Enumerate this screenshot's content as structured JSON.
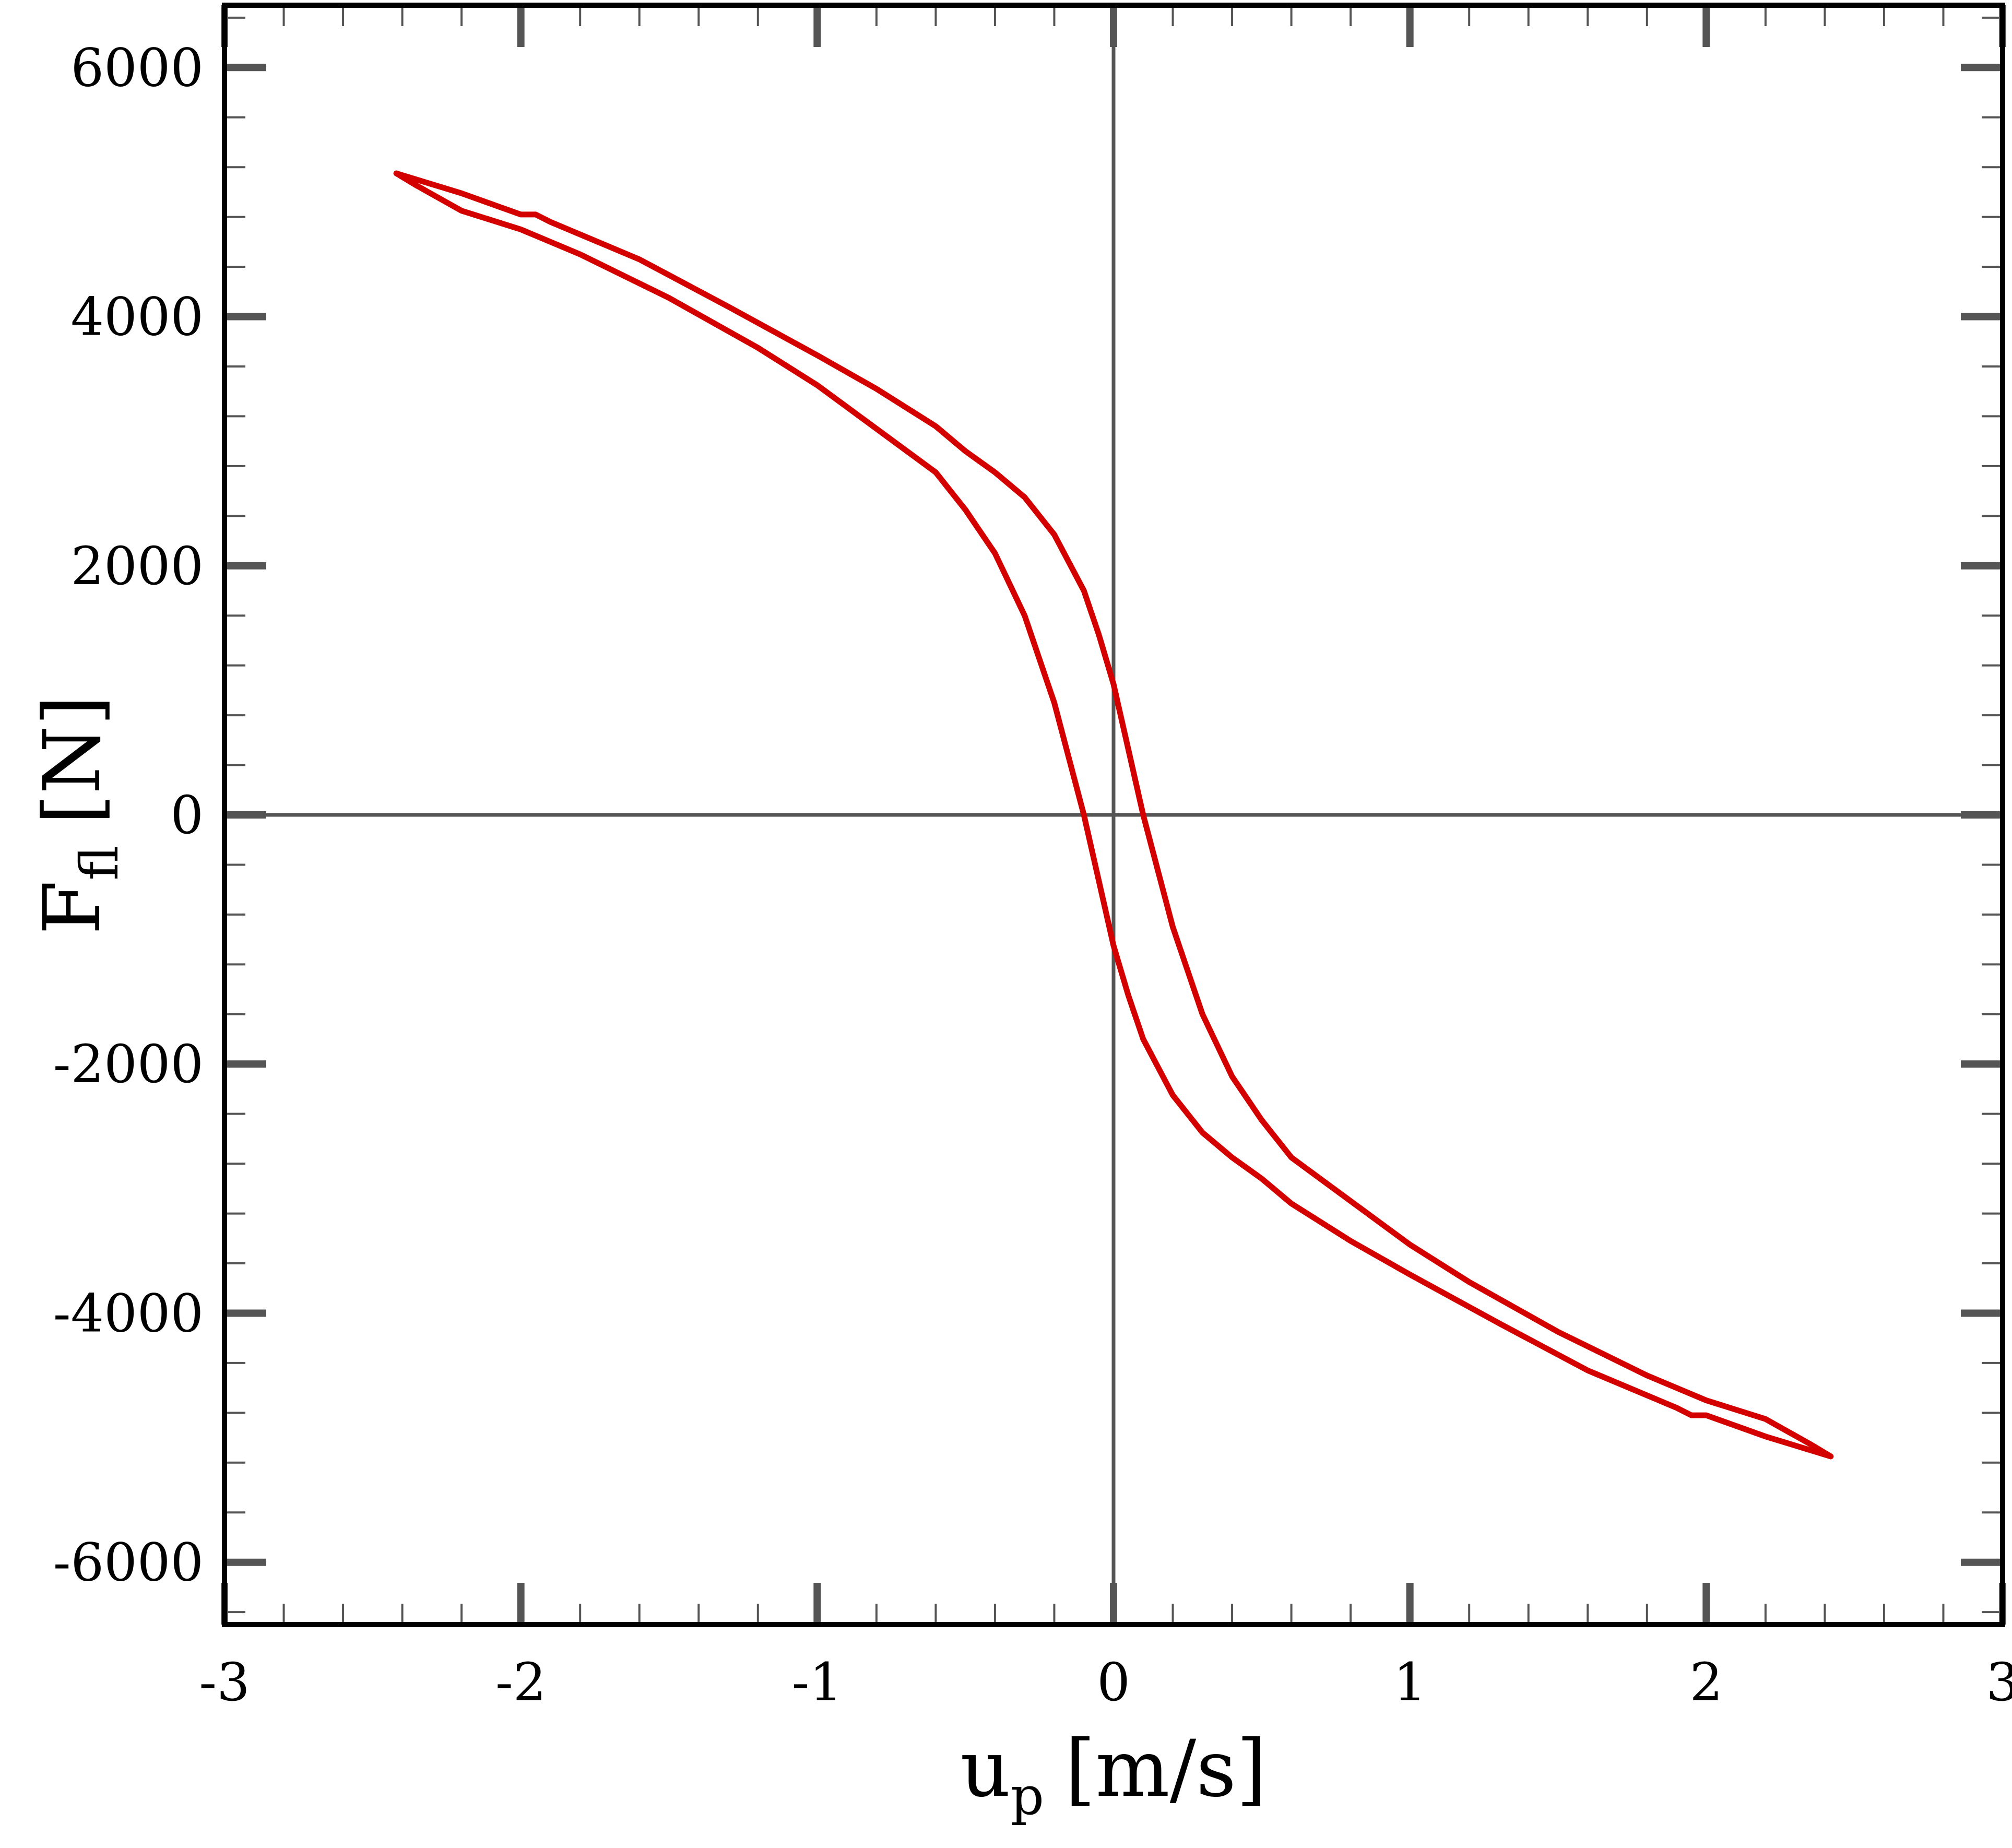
{
  "chart_data": {
    "type": "line",
    "title": "",
    "xlabel": {
      "main": "u",
      "sub": "p",
      "unit": "[m/s]"
    },
    "ylabel": {
      "main": "F",
      "sub": "fl",
      "unit": "[N]"
    },
    "xlim": [
      -3,
      3
    ],
    "ylim": [
      -6500,
      6500
    ],
    "xticks": [
      -3,
      -2,
      -1,
      0,
      1,
      2,
      3
    ],
    "xtick_labels": [
      "-3",
      "-2",
      "-1",
      "0",
      "1",
      "2",
      "3"
    ],
    "yticks": [
      -6000,
      -4000,
      -2000,
      0,
      2000,
      4000,
      6000
    ],
    "ytick_labels": [
      "-6000",
      "-4000",
      "-2000",
      "0",
      "2000",
      "4000",
      "6000"
    ],
    "grid": false,
    "zero_lines": true,
    "colors": {
      "series": "#d40000",
      "zero_line": "#555555",
      "frame": "#000000",
      "ticks": "#555555"
    },
    "series": [
      {
        "x": [
          -2.42,
          -2.35,
          -2.2,
          -2.0,
          -1.8,
          -1.5,
          -1.2,
          -1.0,
          -0.8,
          -0.6,
          -0.5,
          -0.4,
          -0.3,
          -0.2,
          -0.1,
          0.0,
          0.05,
          0.1,
          0.2,
          0.3,
          0.4,
          0.5,
          0.6,
          0.8,
          1.0,
          1.3,
          1.6,
          1.9,
          1.95,
          2.0,
          2.2,
          2.42
        ],
        "y": [
          5150,
          5050,
          4850,
          4700,
          4500,
          4150,
          3750,
          3450,
          3100,
          2750,
          2450,
          2100,
          1600,
          900,
          0,
          -1050,
          -1450,
          -1800,
          -2250,
          -2550,
          -2750,
          -2920,
          -3120,
          -3420,
          -3690,
          -4080,
          -4460,
          -4760,
          -4820,
          -4820,
          -4990,
          -5150
        ]
      },
      {
        "x": [
          2.42,
          2.35,
          2.2,
          2.0,
          1.8,
          1.5,
          1.2,
          1.0,
          0.8,
          0.6,
          0.5,
          0.4,
          0.3,
          0.2,
          0.1,
          0.0,
          -0.05,
          -0.1,
          -0.2,
          -0.3,
          -0.4,
          -0.5,
          -0.6,
          -0.8,
          -1.0,
          -1.3,
          -1.6,
          -1.9,
          -1.95,
          -2.0,
          -2.2,
          -2.42
        ],
        "y": [
          -5150,
          -5050,
          -4850,
          -4700,
          -4500,
          -4150,
          -3750,
          -3450,
          -3100,
          -2750,
          -2450,
          -2100,
          -1600,
          -900,
          0,
          1050,
          1450,
          1800,
          2250,
          2550,
          2750,
          2920,
          3120,
          3420,
          3690,
          4080,
          4460,
          4760,
          4820,
          4820,
          4990,
          5150
        ]
      }
    ]
  }
}
